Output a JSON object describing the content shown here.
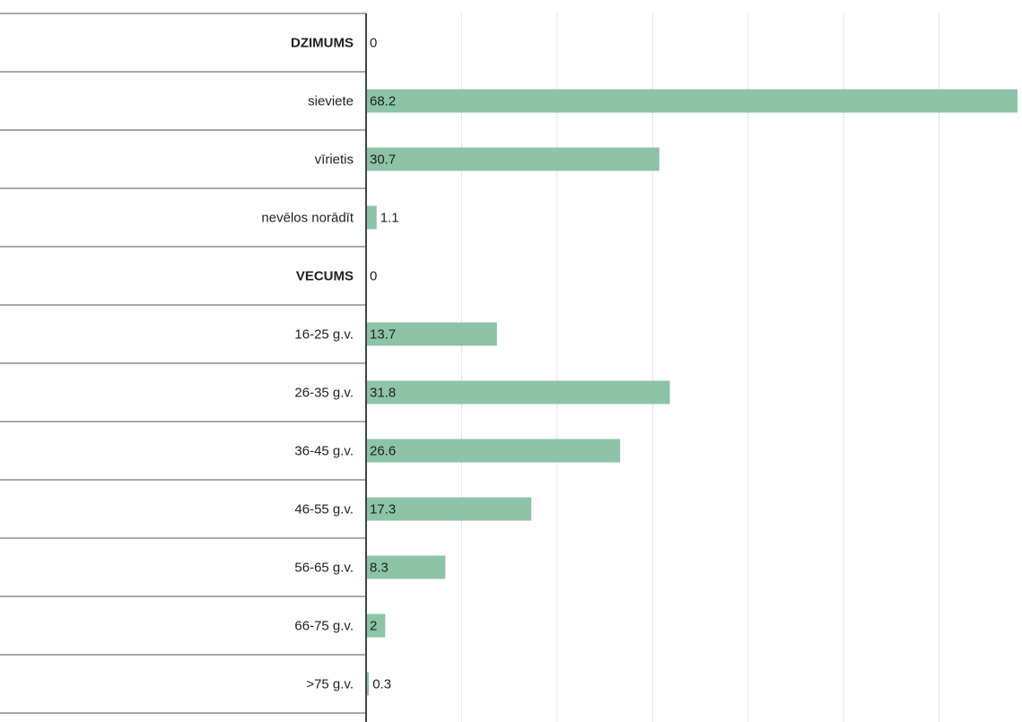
{
  "chart_data": {
    "type": "hbar",
    "categories": [
      "DZIMUMS",
      "sieviete",
      "vīrietis",
      "nevēlos norādīt",
      "VECUMS",
      "16-25 g.v.",
      "26-35 g.v.",
      "36-45 g.v.",
      "46-55 g.v.",
      "56-65 g.v.",
      "66-75 g.v.",
      ">75 g.v."
    ],
    "values": [
      0,
      68.2,
      30.7,
      1.1,
      0,
      13.7,
      31.8,
      26.6,
      17.3,
      8.3,
      2,
      0.3
    ],
    "color": "#8dc3a7",
    "xlim": [
      0,
      68.2
    ],
    "xticks": [
      10,
      20,
      30,
      40,
      50,
      60
    ],
    "grid": true
  }
}
